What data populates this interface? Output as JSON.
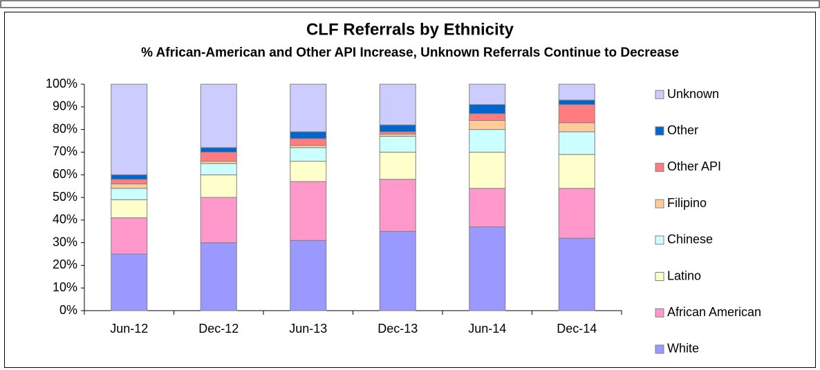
{
  "chart_data": {
    "type": "stacked_bar",
    "title": "CLF Referrals by Ethnicity",
    "subtitle": "% African-American and Other API Increase, Unknown Referrals Continue to Decrease",
    "categories": [
      "Jun-12",
      "Dec-12",
      "Jun-13",
      "Dec-13",
      "Jun-14",
      "Dec-14"
    ],
    "series": [
      {
        "name": "White",
        "color": "#9999ff",
        "values": [
          25,
          30,
          31,
          35,
          37,
          32
        ]
      },
      {
        "name": "African American",
        "color": "#ff99cc",
        "values": [
          16,
          20,
          26,
          23,
          17,
          22
        ]
      },
      {
        "name": "Latino",
        "color": "#ffffcc",
        "values": [
          8,
          10,
          9,
          12,
          16,
          15
        ]
      },
      {
        "name": "Chinese",
        "color": "#ccffff",
        "values": [
          5,
          5,
          6,
          7,
          10,
          10
        ]
      },
      {
        "name": "Filipino",
        "color": "#ffcc99",
        "values": [
          2,
          1,
          1,
          1,
          4,
          4
        ]
      },
      {
        "name": "Other API",
        "color": "#ff7c80",
        "values": [
          2,
          4,
          3,
          1,
          3,
          8
        ]
      },
      {
        "name": "Other",
        "color": "#0066cc",
        "values": [
          2,
          2,
          3,
          3,
          4,
          2
        ]
      },
      {
        "name": "Unknown",
        "color": "#ccccff",
        "values": [
          40,
          28,
          21,
          18,
          9,
          7
        ]
      }
    ],
    "ylim": [
      0,
      100
    ],
    "yticks": [
      {
        "value": 0,
        "label": "0%"
      },
      {
        "value": 10,
        "label": "10%"
      },
      {
        "value": 20,
        "label": "20%"
      },
      {
        "value": 30,
        "label": "30%"
      },
      {
        "value": 40,
        "label": "40%"
      },
      {
        "value": 50,
        "label": "50%"
      },
      {
        "value": 60,
        "label": "60%"
      },
      {
        "value": 70,
        "label": "70%"
      },
      {
        "value": 80,
        "label": "80%"
      },
      {
        "value": 90,
        "label": "90%"
      },
      {
        "value": 100,
        "label": "100%"
      }
    ],
    "grid": false
  }
}
